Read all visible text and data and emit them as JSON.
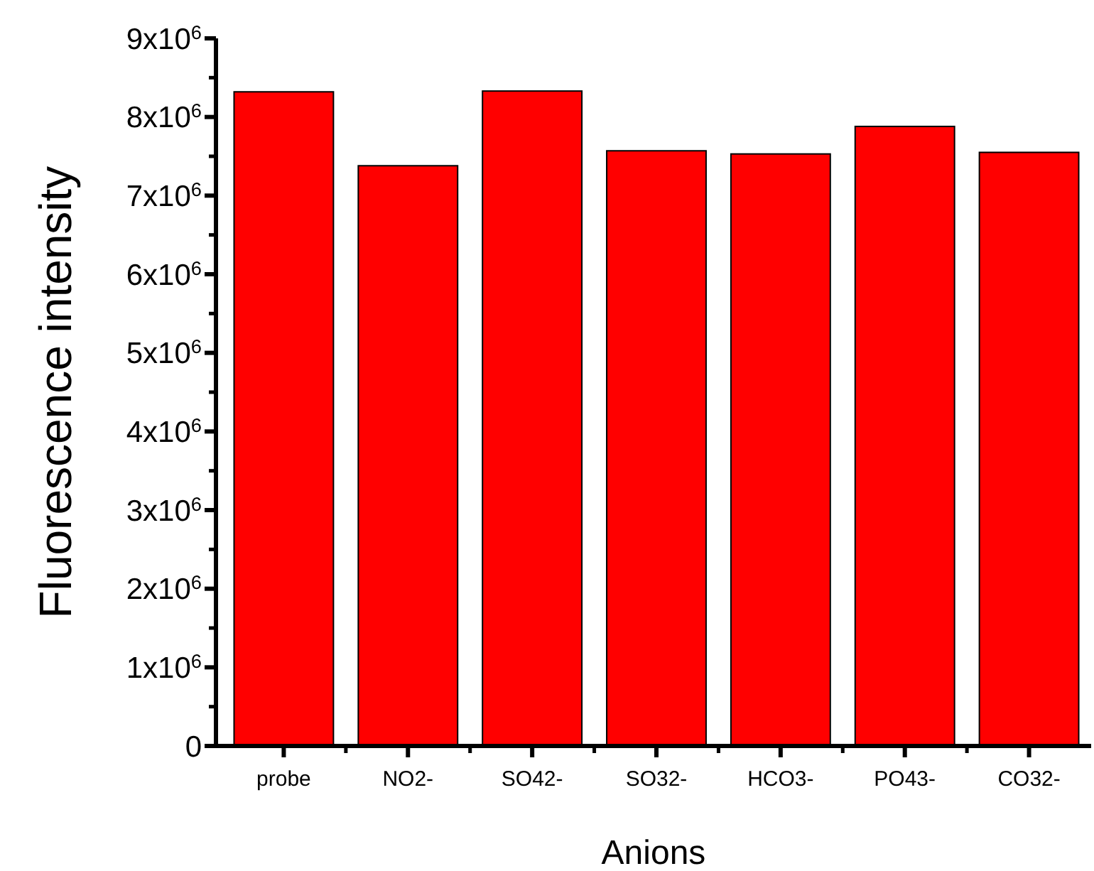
{
  "chart_data": {
    "type": "bar",
    "xlabel": "Anions",
    "ylabel": "Fluorescence intensity",
    "categories": [
      "probe",
      "NO2-",
      "SO42-",
      "SO32-",
      "HCO3-",
      "PO43-",
      "CO32-"
    ],
    "values": [
      8320000.0,
      7380000.0,
      8330000.0,
      7570000.0,
      7530000.0,
      7880000.0,
      7550000.0
    ],
    "color": "#ff0000",
    "ylim": [
      0,
      9000000.0
    ],
    "yticks": [
      0,
      {
        "value": 1000000.0,
        "label": "1x10$^{6}$"
      },
      {
        "value": 2000000.0,
        "label": "2x10$^{6}$"
      },
      {
        "value": 3000000.0,
        "label": "3x10$^{6}$"
      },
      {
        "value": 4000000.0,
        "label": "4x10$^{6}$"
      },
      {
        "value": 5000000.0,
        "label": "5x10$^{6}$"
      },
      {
        "value": 6000000.0,
        "label": "6x10$^{6}$"
      },
      {
        "value": 7000000.0,
        "label": "7x10$^{6}$"
      },
      {
        "value": 8000000.0,
        "label": "8x10$^{6}$"
      },
      {
        "value": 9000000.0,
        "label": "9x10$^{6}$"
      }
    ],
    "grid": false
  }
}
